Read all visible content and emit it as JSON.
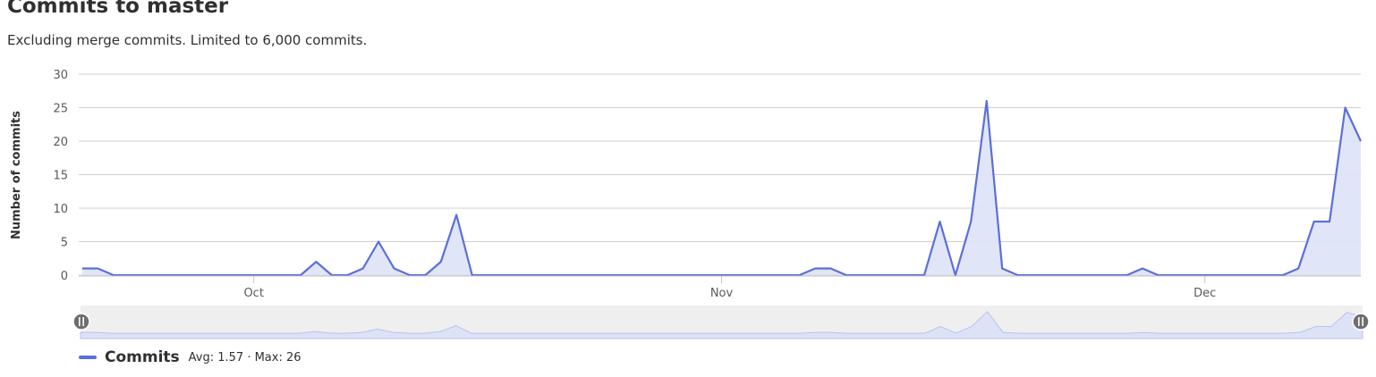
{
  "header": {
    "title": "Commits to master",
    "subtitle": "Excluding merge commits. Limited to 6,000 commits."
  },
  "legend": {
    "name": "Commits",
    "stats": "Avg: 1.57 · Max: 26"
  },
  "colors": {
    "series": "#5b6fd8",
    "fill": "#dde2f7",
    "grid": "#d0d0d0",
    "navigator_bg": "#efefef"
  },
  "chart_data": {
    "type": "area",
    "xlabel": "",
    "ylabel": "Number of commits",
    "ylim": [
      0,
      30
    ],
    "yticks": [
      0,
      5,
      10,
      15,
      20,
      25,
      30
    ],
    "xtick_labels": [
      "Oct",
      "Nov",
      "Dec"
    ],
    "xtick_index": [
      11,
      41,
      72
    ],
    "grid": true,
    "series": [
      {
        "name": "Commits",
        "values": [
          1,
          1,
          0,
          0,
          0,
          0,
          0,
          0,
          0,
          0,
          0,
          0,
          0,
          0,
          0,
          2,
          0,
          0,
          1,
          5,
          1,
          0,
          0,
          2,
          9,
          0,
          0,
          0,
          0,
          0,
          0,
          0,
          0,
          0,
          0,
          0,
          0,
          0,
          0,
          0,
          0,
          0,
          0,
          0,
          0,
          0,
          0,
          1,
          1,
          0,
          0,
          0,
          0,
          0,
          0,
          8,
          0,
          8,
          26,
          1,
          0,
          0,
          0,
          0,
          0,
          0,
          0,
          0,
          1,
          0,
          0,
          0,
          0,
          0,
          0,
          0,
          0,
          0,
          1,
          8,
          8,
          25,
          20
        ]
      }
    ]
  }
}
